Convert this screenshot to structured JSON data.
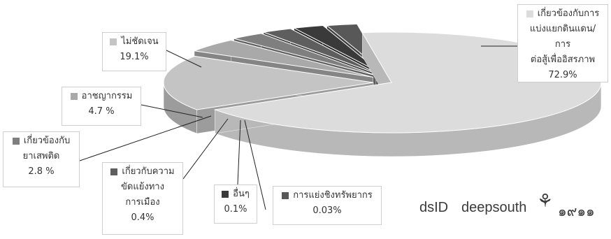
{
  "chart_data": {
    "type": "pie",
    "style": "3d-exploded",
    "categories": [
      "เกี่ยวข้องกับการแบ่งแยกดินแดน/การต่อสู้เพื่ออิสรภาพ",
      "ไม่ชัดเจน",
      "อาชญากรรม",
      "เกี่ยวข้องกับยาเสพติด",
      "เกี่ยวกับความขัดแย้งทางการเมือง",
      "อื่นๆ",
      "การแย่งชิงทรัพยากร"
    ],
    "values": [
      72.9,
      19.1,
      4.7,
      2.8,
      0.4,
      0.1,
      0.03
    ],
    "value_labels": [
      "72.9%",
      "19.1%",
      "4.7  %",
      "2.8  %",
      "0.4%",
      "0.1%",
      "0.03%"
    ],
    "colors": [
      "#dcdcdc",
      "#c4c4c4",
      "#a9a9a9",
      "#7f7f7f",
      "#5e5e5e",
      "#3a3a3a",
      "#585858"
    ],
    "side_colors": [
      "#b8b8b8",
      "#9c9c9c",
      "#858585",
      "#5f5f5f",
      "#444444",
      "#262626",
      "#404040"
    ],
    "label_lines": [
      [
        "เกี่ยวข้องกับการ",
        "แบ่งแยกดินแดน/การ",
        "ต่อสู้เพื่ออิสรภาพ"
      ],
      [
        "ไม่ชัดเจน"
      ],
      [
        "อาชญากรรม"
      ],
      [
        "เกี่ยวข้องกับ",
        "ยาเสพติด"
      ],
      [
        "เกี่ยวกับความ",
        "ขัดแย้งทาง",
        "การเมือง"
      ],
      [
        "อื่นๆ"
      ],
      [
        "การแย่งชิงทรัพยากร"
      ]
    ]
  },
  "watermark": {
    "logo_text_1": "dsID",
    "logo_text_2": "deepsouth",
    "logo_text_3": "๑๙๑๑"
  }
}
